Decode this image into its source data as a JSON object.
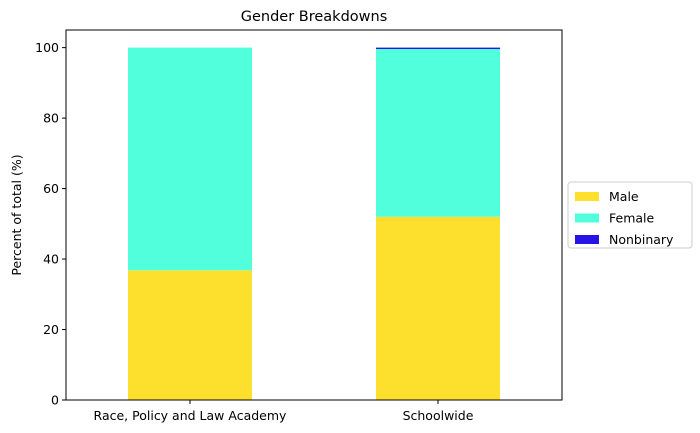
{
  "chart_data": {
    "type": "bar",
    "stacked": true,
    "title": "Gender Breakdowns",
    "xlabel": "",
    "ylabel": "Percent of total (%)",
    "categories": [
      "Race, Policy and Law Academy",
      "Schoolwide"
    ],
    "series": [
      {
        "name": "Male",
        "color": "#fde02e",
        "values": [
          36.8,
          52.0
        ]
      },
      {
        "name": "Female",
        "color": "#52ffdc",
        "values": [
          63.2,
          47.6
        ]
      },
      {
        "name": "Nonbinary",
        "color": "#2614e6",
        "values": [
          0.0,
          0.4
        ]
      }
    ],
    "ylim": [
      0,
      105
    ],
    "yticks": [
      0,
      20,
      40,
      60,
      80,
      100
    ],
    "grid": false,
    "legend_position": "center-right outside"
  }
}
